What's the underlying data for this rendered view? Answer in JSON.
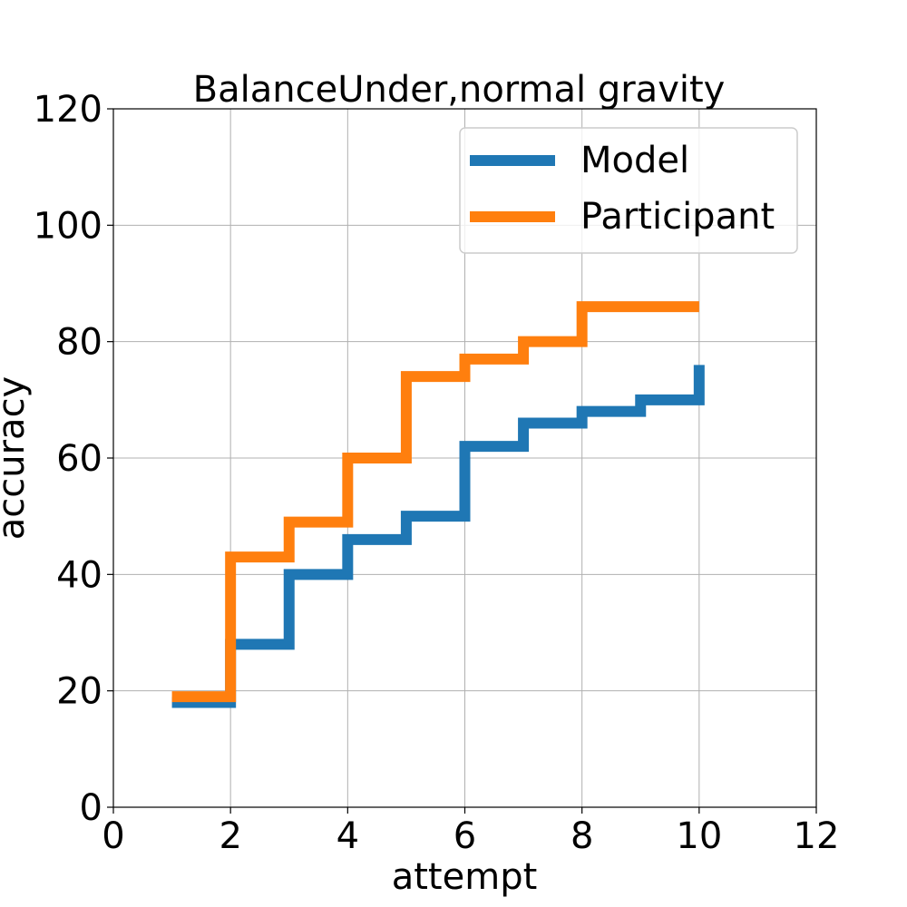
{
  "chart_data": {
    "type": "line",
    "step": "post",
    "title": "BalanceUnder,normal gravity",
    "xlabel": "attempt",
    "ylabel": "accuracy",
    "xlim": [
      0,
      12
    ],
    "ylim": [
      0,
      120
    ],
    "xticks": [
      0,
      2,
      4,
      6,
      8,
      10,
      12
    ],
    "yticks": [
      0,
      20,
      40,
      60,
      80,
      100,
      120
    ],
    "grid": true,
    "legend": "top-right",
    "series": [
      {
        "name": "Model",
        "color": "#1f77b4",
        "x": [
          1,
          2,
          3,
          4,
          5,
          6,
          7,
          8,
          9,
          10
        ],
        "y": [
          18,
          28,
          40,
          46,
          50,
          62,
          66,
          68,
          70,
          76
        ]
      },
      {
        "name": "Participant",
        "color": "#ff7f0e",
        "x": [
          1,
          2,
          3,
          4,
          5,
          6,
          7,
          8,
          9,
          10
        ],
        "y": [
          19,
          43,
          49,
          60,
          74,
          77,
          80,
          86,
          86,
          86
        ]
      }
    ]
  }
}
